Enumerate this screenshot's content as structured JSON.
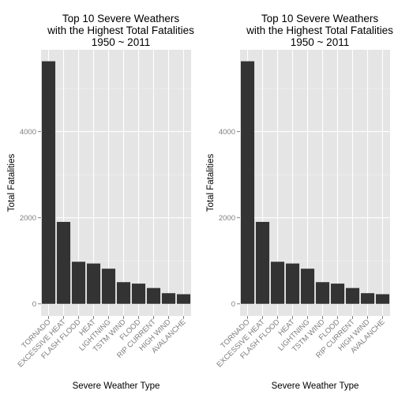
{
  "chart_data": [
    {
      "type": "bar",
      "title": [
        "Top 10 Severe Weathers",
        "with the Highest Total Fatalities",
        "1950 ~ 2011"
      ],
      "xlabel": "Severe Weather Type",
      "ylabel": "Total Fatalities",
      "categories": [
        "TORNADO",
        "EXCESSIVE HEAT",
        "FLASH FLOOD",
        "HEAT",
        "LIGHTNING",
        "TSTM WIND",
        "FLOOD",
        "RIP CURRENT",
        "HIGH WIND",
        "AVALANCHE"
      ],
      "values": [
        5633,
        1903,
        978,
        937,
        816,
        504,
        470,
        368,
        248,
        224
      ],
      "yticks": [
        0,
        2000,
        4000
      ],
      "ylim": [
        -280,
        5900
      ],
      "grid": true,
      "colors": {
        "panel": "#e5e5e5",
        "grid_major": "#ffffff",
        "grid_minor": "#f2f2f2",
        "bar": "#333333",
        "tick_label": "#7f7f7f",
        "text": "#000000"
      }
    },
    {
      "type": "bar",
      "title": [
        "Top 10 Severe Weathers",
        "with the Highest Total Fatalities",
        "1950 ~ 2011"
      ],
      "xlabel": "Severe Weather Type",
      "ylabel": "Total Fatalities",
      "categories": [
        "TORNADO",
        "EXCESSIVE HEAT",
        "FLASH FLOOD",
        "HEAT",
        "LIGHTNING",
        "TSTM WIND",
        "FLOOD",
        "RIP CURRENT",
        "HIGH WIND",
        "AVALANCHE"
      ],
      "values": [
        5633,
        1903,
        978,
        937,
        816,
        504,
        470,
        368,
        248,
        224
      ],
      "yticks": [
        0,
        2000,
        4000
      ],
      "ylim": [
        -280,
        5900
      ],
      "grid": true,
      "colors": {
        "panel": "#e5e5e5",
        "grid_major": "#ffffff",
        "grid_minor": "#f2f2f2",
        "bar": "#333333",
        "tick_label": "#7f7f7f",
        "text": "#000000"
      }
    }
  ]
}
